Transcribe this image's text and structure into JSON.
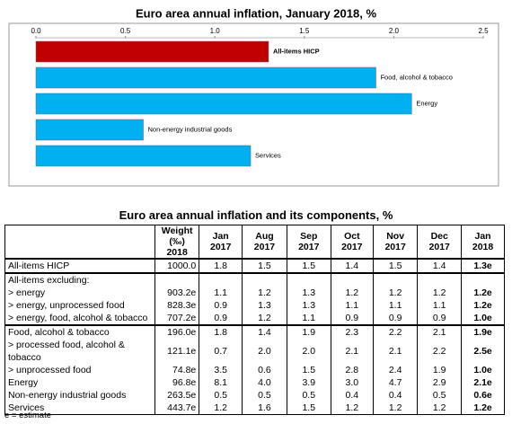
{
  "chart_data": {
    "type": "bar",
    "orientation": "horizontal",
    "title": "Euro area annual inflation, January 2018, %",
    "categories": [
      "All-items HICP",
      "Food, alcohol & tobacco",
      "Energy",
      "Non-energy industrial goods",
      "Services"
    ],
    "values": [
      1.3,
      1.9,
      2.1,
      0.6,
      1.2
    ],
    "colors": [
      "#c00000",
      "#00b0f0",
      "#00b0f0",
      "#00b0f0",
      "#00b0f0"
    ],
    "xlim": [
      0,
      2.5
    ],
    "xticks": [
      {
        "value": 0,
        "label": "0.0"
      },
      0.5,
      {
        "value": 1,
        "label": "1.0"
      },
      1.5,
      {
        "value": 2,
        "label": "2.0"
      },
      2.5
    ],
    "grid": false
  },
  "table": {
    "title": "Euro area annual inflation and its components, %",
    "header": [
      "Weight\n(‰) 2018",
      "Jan 2017",
      "Aug 2017",
      "Sep 2017",
      "Oct 2017",
      "Nov 2017",
      "Dec 2017",
      "Jan 2018"
    ],
    "sections": [
      [
        [
          "All-items HICP",
          "1000.0",
          "1.8",
          "1.5",
          "1.5",
          "1.4",
          "1.5",
          "1.4",
          "1.3e"
        ]
      ],
      [
        [
          "All-items excluding:"
        ],
        [
          "> energy",
          "903.2e",
          "1.1",
          "1.2",
          "1.3",
          "1.2",
          "1.2",
          "1.2",
          "1.2e"
        ],
        [
          "> energy, unprocessed food",
          "828.3e",
          "0.9",
          "1.3",
          "1.3",
          "1.1",
          "1.1",
          "1.1",
          "1.2e"
        ],
        [
          "> energy, food, alcohol & tobacco",
          "707.2e",
          "0.9",
          "1.2",
          "1.1",
          "0.9",
          "0.9",
          "0.9",
          "1.0e"
        ]
      ],
      [
        [
          "Food, alcohol & tobacco",
          "196.0e",
          "1.8",
          "1.4",
          "1.9",
          "2.3",
          "2.2",
          "2.1",
          "1.9e"
        ],
        [
          "> processed food, alcohol & tobacco",
          "121.1e",
          "0.7",
          "2.0",
          "2.0",
          "2.1",
          "2.1",
          "2.2",
          "2.5e"
        ],
        [
          "> unprocessed food",
          "74.8e",
          "3.5",
          "0.6",
          "1.5",
          "2.8",
          "2.4",
          "1.9",
          "1.0e"
        ],
        [
          "Energy",
          "96.8e",
          "8.1",
          "4.0",
          "3.9",
          "3.0",
          "4.7",
          "2.9",
          "2.1e"
        ],
        [
          "Non-energy industrial goods",
          "263.5e",
          "0.5",
          "0.5",
          "0.5",
          "0.4",
          "0.4",
          "0.5",
          "0.6e"
        ],
        [
          "Services",
          "443.7e",
          "1.2",
          "1.6",
          "1.5",
          "1.2",
          "1.2",
          "1.2",
          "1.2e"
        ]
      ]
    ],
    "footnote": "e = estimate"
  }
}
